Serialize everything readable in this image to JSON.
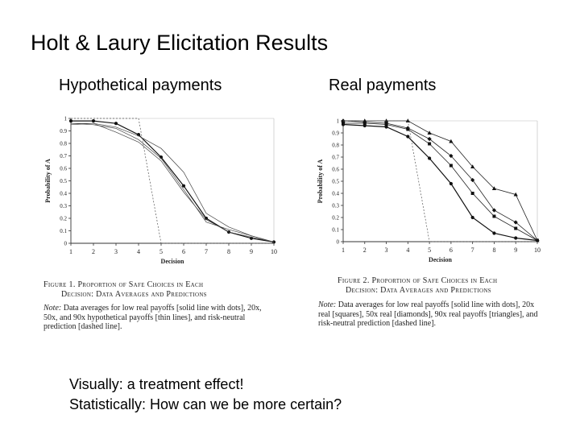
{
  "slide": {
    "title": "Holt & Laury Elicitation Results",
    "left_subtitle": "Hypothetical payments",
    "right_subtitle": "Real payments",
    "bottom_line1": "Visually: a treatment effect!",
    "bottom_line2": "Statistically: How can we be more certain?"
  },
  "figure_left": {
    "caption_line1": "Figure 1. Proportion of Safe Choices in Each",
    "caption_line2": "Decision: Data Averages and Predictions",
    "note_label": "Note:",
    "note_text": "Data averages for low real payoffs [solid line with dots], 20x, 50x, and 90x hypothetical payoffs [thin lines], and risk-neutral prediction [dashed line]."
  },
  "figure_right": {
    "caption_line1": "Figure 2. Proportion of Safe Choices in Each",
    "caption_line2": "Decision: Data Averages and Predictions",
    "note_label": "Note:",
    "note_text": "Data averages for low real payoffs [solid line with dots], 20x real [squares], 50x real [diamonds], 90x real payoffs [triangles], and risk-neutral prediction [dashed line]."
  },
  "chart_data": [
    {
      "type": "line",
      "xlabel": "Decision",
      "ylabel": "Probability of A",
      "x": [
        1,
        2,
        3,
        4,
        5,
        6,
        7,
        8,
        9,
        10
      ],
      "xlim": [
        1,
        10
      ],
      "ylim": [
        0,
        1
      ],
      "yticks": [
        "0",
        "0.1",
        "0.2",
        "0.3",
        "0.4",
        "0.5",
        "0.6",
        "0.7",
        "0.8",
        "0.9",
        "1"
      ],
      "series": [
        {
          "style": "solid-dots",
          "values": [
            0.98,
            0.98,
            0.96,
            0.87,
            0.69,
            0.46,
            0.2,
            0.09,
            0.04,
            0.01
          ]
        },
        {
          "style": "thin",
          "values": [
            0.96,
            0.96,
            0.93,
            0.86,
            0.76,
            0.57,
            0.24,
            0.13,
            0.06,
            0.01
          ]
        },
        {
          "style": "thin",
          "values": [
            0.96,
            0.95,
            0.92,
            0.83,
            0.68,
            0.43,
            0.17,
            0.11,
            0.06,
            0.01
          ]
        },
        {
          "style": "thin",
          "values": [
            0.95,
            0.96,
            0.89,
            0.81,
            0.66,
            0.41,
            0.19,
            0.09,
            0.05,
            0.01
          ]
        },
        {
          "style": "dashed",
          "values": [
            1,
            1,
            1,
            1,
            0,
            0,
            0,
            0,
            0,
            0
          ]
        }
      ]
    },
    {
      "type": "line",
      "xlabel": "Decision",
      "ylabel": "Probability of A",
      "x": [
        1,
        2,
        3,
        4,
        5,
        6,
        7,
        8,
        9,
        10
      ],
      "xlim": [
        1,
        10
      ],
      "ylim": [
        0,
        1
      ],
      "yticks": [
        "0",
        "0.1",
        "0.2",
        "0.3",
        "0.4",
        "0.5",
        "0.6",
        "0.7",
        "0.8",
        "0.9",
        "1"
      ],
      "series": [
        {
          "style": "solid-dots",
          "marker": "dot",
          "values": [
            0.97,
            0.96,
            0.95,
            0.87,
            0.69,
            0.48,
            0.2,
            0.07,
            0.03,
            0.01
          ]
        },
        {
          "style": "solid",
          "marker": "square",
          "values": [
            0.98,
            0.98,
            0.97,
            0.93,
            0.81,
            0.63,
            0.4,
            0.21,
            0.11,
            0.01
          ]
        },
        {
          "style": "solid",
          "marker": "diamond",
          "values": [
            1,
            0.99,
            0.98,
            0.94,
            0.85,
            0.71,
            0.51,
            0.26,
            0.16,
            0.01
          ]
        },
        {
          "style": "solid",
          "marker": "triangle",
          "values": [
            1,
            1,
            1,
            1,
            0.9,
            0.83,
            0.62,
            0.44,
            0.39,
            0.01
          ]
        },
        {
          "style": "dashed",
          "values": [
            1,
            1,
            1,
            1,
            0,
            0,
            0,
            0,
            0,
            0
          ]
        }
      ]
    }
  ]
}
